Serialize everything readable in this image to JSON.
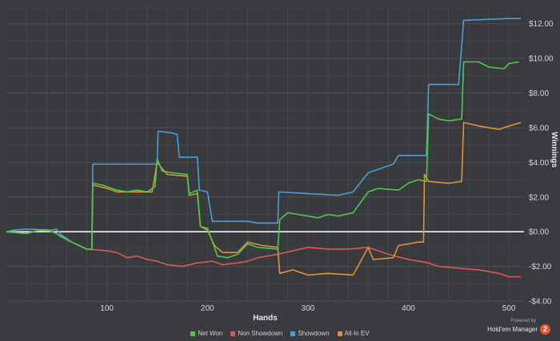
{
  "chart_data": {
    "type": "line",
    "xlabel": "Hands",
    "ylabel": "Winnings",
    "xlim": [
      0,
      515
    ],
    "ylim": [
      -4,
      13
    ],
    "x_ticks": [
      100,
      200,
      300,
      400,
      500
    ],
    "y_ticks": [
      {
        "value": 12,
        "label": "$12.00"
      },
      {
        "value": 10,
        "label": "$10.00"
      },
      {
        "value": 8,
        "label": "$8.00"
      },
      {
        "value": 6,
        "label": "$6.00"
      },
      {
        "value": 4,
        "label": "$4.00"
      },
      {
        "value": 2,
        "label": "$2.00"
      },
      {
        "value": 0,
        "label": "$0.00"
      },
      {
        "value": -2,
        "label": "-$2.00"
      },
      {
        "value": -4,
        "label": "-$4.00"
      }
    ],
    "grid": true,
    "legend_position": "bottom",
    "series": [
      {
        "name": "Net Won",
        "color": "#4cc94a",
        "points": [
          [
            0,
            0
          ],
          [
            10,
            -0.05
          ],
          [
            20,
            -0.1
          ],
          [
            30,
            0.05
          ],
          [
            40,
            0.1
          ],
          [
            50,
            -0.1
          ],
          [
            55,
            -0.3
          ],
          [
            65,
            -0.6
          ],
          [
            80,
            -1.0
          ],
          [
            85,
            -1.0
          ],
          [
            86,
            2.8
          ],
          [
            95,
            2.7
          ],
          [
            105,
            2.5
          ],
          [
            110,
            2.4
          ],
          [
            120,
            2.3
          ],
          [
            130,
            2.4
          ],
          [
            140,
            2.3
          ],
          [
            148,
            2.6
          ],
          [
            150,
            4.2
          ],
          [
            155,
            3.5
          ],
          [
            165,
            3.4
          ],
          [
            180,
            3.3
          ],
          [
            182,
            2.2
          ],
          [
            190,
            2.4
          ],
          [
            193,
            0.3
          ],
          [
            200,
            0.2
          ],
          [
            207,
            -0.9
          ],
          [
            210,
            -1.4
          ],
          [
            220,
            -1.5
          ],
          [
            230,
            -1.3
          ],
          [
            240,
            -0.7
          ],
          [
            250,
            -0.9
          ],
          [
            270,
            -1.0
          ],
          [
            272,
            0.7
          ],
          [
            280,
            1.1
          ],
          [
            290,
            1.0
          ],
          [
            300,
            0.9
          ],
          [
            310,
            0.8
          ],
          [
            320,
            1.0
          ],
          [
            330,
            0.9
          ],
          [
            345,
            1.1
          ],
          [
            360,
            2.3
          ],
          [
            370,
            2.5
          ],
          [
            390,
            2.4
          ],
          [
            400,
            2.8
          ],
          [
            410,
            3.0
          ],
          [
            418,
            2.9
          ],
          [
            420,
            6.8
          ],
          [
            430,
            6.5
          ],
          [
            440,
            6.4
          ],
          [
            453,
            6.5
          ],
          [
            455,
            9.8
          ],
          [
            470,
            9.8
          ],
          [
            480,
            9.5
          ],
          [
            495,
            9.4
          ],
          [
            500,
            9.7
          ],
          [
            510,
            9.8
          ]
        ]
      },
      {
        "name": "Non Showdown",
        "color": "#e05656",
        "points": [
          [
            0,
            0
          ],
          [
            10,
            -0.05
          ],
          [
            20,
            -0.1
          ],
          [
            30,
            0.05
          ],
          [
            40,
            0.1
          ],
          [
            50,
            -0.1
          ],
          [
            55,
            -0.3
          ],
          [
            65,
            -0.6
          ],
          [
            80,
            -1.0
          ],
          [
            100,
            -1.1
          ],
          [
            110,
            -1.2
          ],
          [
            120,
            -1.5
          ],
          [
            130,
            -1.4
          ],
          [
            140,
            -1.6
          ],
          [
            150,
            -1.7
          ],
          [
            160,
            -1.9
          ],
          [
            175,
            -2.0
          ],
          [
            190,
            -1.8
          ],
          [
            205,
            -1.7
          ],
          [
            215,
            -1.9
          ],
          [
            230,
            -1.8
          ],
          [
            240,
            -1.7
          ],
          [
            250,
            -1.5
          ],
          [
            270,
            -1.3
          ],
          [
            285,
            -1.1
          ],
          [
            300,
            -0.9
          ],
          [
            320,
            -1.0
          ],
          [
            340,
            -1.0
          ],
          [
            360,
            -0.9
          ],
          [
            380,
            -1.3
          ],
          [
            400,
            -1.6
          ],
          [
            420,
            -1.8
          ],
          [
            430,
            -2.0
          ],
          [
            450,
            -2.1
          ],
          [
            470,
            -2.2
          ],
          [
            480,
            -2.3
          ],
          [
            490,
            -2.4
          ],
          [
            500,
            -2.6
          ],
          [
            512,
            -2.6
          ]
        ]
      },
      {
        "name": "Showdown",
        "color": "#4b9ed6",
        "points": [
          [
            0,
            0
          ],
          [
            8,
            0.1
          ],
          [
            20,
            0.15
          ],
          [
            45,
            0.1
          ],
          [
            50,
            0.15
          ],
          [
            55,
            -0.2
          ],
          [
            65,
            -0.6
          ],
          [
            80,
            -1.0
          ],
          [
            85,
            -1.0
          ],
          [
            86,
            3.9
          ],
          [
            100,
            3.9
          ],
          [
            130,
            3.9
          ],
          [
            150,
            3.9
          ],
          [
            151,
            5.8
          ],
          [
            165,
            5.7
          ],
          [
            170,
            5.6
          ],
          [
            172,
            4.3
          ],
          [
            190,
            4.3
          ],
          [
            192,
            2.4
          ],
          [
            200,
            2.3
          ],
          [
            205,
            0.6
          ],
          [
            240,
            0.6
          ],
          [
            250,
            0.5
          ],
          [
            270,
            0.5
          ],
          [
            271,
            2.3
          ],
          [
            300,
            2.2
          ],
          [
            330,
            2.1
          ],
          [
            345,
            2.3
          ],
          [
            360,
            3.4
          ],
          [
            385,
            3.9
          ],
          [
            390,
            4.4
          ],
          [
            410,
            4.4
          ],
          [
            418,
            4.4
          ],
          [
            420,
            8.5
          ],
          [
            450,
            8.5
          ],
          [
            455,
            12.2
          ],
          [
            500,
            12.3
          ],
          [
            512,
            12.3
          ]
        ]
      },
      {
        "name": "All-In EV",
        "color": "#e0913a",
        "points": [
          [
            0,
            0
          ],
          [
            10,
            -0.05
          ],
          [
            20,
            -0.1
          ],
          [
            30,
            0.05
          ],
          [
            40,
            0.1
          ],
          [
            50,
            -0.1
          ],
          [
            55,
            -0.3
          ],
          [
            65,
            -0.6
          ],
          [
            80,
            -1.0
          ],
          [
            85,
            -1.0
          ],
          [
            86,
            2.7
          ],
          [
            100,
            2.5
          ],
          [
            110,
            2.3
          ],
          [
            130,
            2.3
          ],
          [
            145,
            2.3
          ],
          [
            150,
            4.0
          ],
          [
            160,
            3.3
          ],
          [
            180,
            3.2
          ],
          [
            182,
            2.1
          ],
          [
            190,
            2.2
          ],
          [
            193,
            0.3
          ],
          [
            200,
            0.1
          ],
          [
            207,
            -0.8
          ],
          [
            215,
            -1.2
          ],
          [
            230,
            -1.2
          ],
          [
            240,
            -0.6
          ],
          [
            255,
            -0.8
          ],
          [
            270,
            -0.9
          ],
          [
            272,
            -2.4
          ],
          [
            285,
            -2.2
          ],
          [
            300,
            -2.5
          ],
          [
            320,
            -2.4
          ],
          [
            345,
            -2.5
          ],
          [
            360,
            -0.9
          ],
          [
            365,
            -1.6
          ],
          [
            385,
            -1.5
          ],
          [
            390,
            -0.8
          ],
          [
            410,
            -0.6
          ],
          [
            415,
            -0.6
          ],
          [
            416,
            3.3
          ],
          [
            420,
            2.9
          ],
          [
            440,
            2.8
          ],
          [
            453,
            2.9
          ],
          [
            455,
            6.3
          ],
          [
            470,
            6.1
          ],
          [
            490,
            5.9
          ],
          [
            500,
            6.1
          ],
          [
            512,
            6.3
          ]
        ]
      }
    ]
  },
  "branding": {
    "powered_by": "Powered by",
    "product": "Hold'em Manager",
    "badge": "2"
  }
}
